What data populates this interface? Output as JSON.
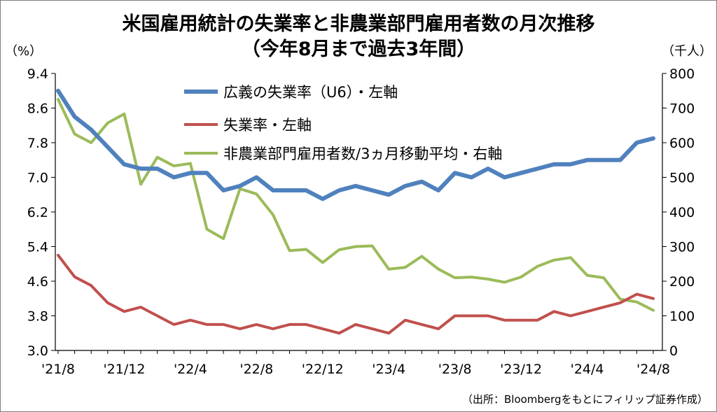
{
  "chart_data": {
    "type": "line",
    "title": "米国雇用統計の失業率と非農業部門雇用者数の月次推移",
    "subtitle": "（今年8月まで過去3年間）",
    "y_left_unit": "（%）",
    "y_right_unit": "（千人）",
    "y_left_range": [
      3.0,
      9.4
    ],
    "y_left_ticks": [
      "9.4",
      "8.6",
      "7.8",
      "7.0",
      "6.2",
      "5.4",
      "4.6",
      "3.8",
      "3.0"
    ],
    "y_right_range": [
      0,
      800
    ],
    "y_right_ticks": [
      "800",
      "700",
      "600",
      "500",
      "400",
      "300",
      "200",
      "100",
      "0"
    ],
    "x": [
      "2021-08",
      "2021-09",
      "2021-10",
      "2021-11",
      "2021-12",
      "2022-01",
      "2022-02",
      "2022-03",
      "2022-04",
      "2022-05",
      "2022-06",
      "2022-07",
      "2022-08",
      "2022-09",
      "2022-10",
      "2022-11",
      "2022-12",
      "2023-01",
      "2023-02",
      "2023-03",
      "2023-04",
      "2023-05",
      "2023-06",
      "2023-07",
      "2023-08",
      "2023-09",
      "2023-10",
      "2023-11",
      "2023-12",
      "2024-01",
      "2024-02",
      "2024-03",
      "2024-04",
      "2024-05",
      "2024-06",
      "2024-07",
      "2024-08"
    ],
    "x_tick_labels": [
      "'21/8",
      "'21/12",
      "'22/4",
      "'22/8",
      "'22/12",
      "'23/4",
      "'23/8",
      "'23/12",
      "'24/4",
      "'24/8"
    ],
    "x_tick_indices": [
      0,
      4,
      8,
      12,
      16,
      20,
      24,
      28,
      32,
      36
    ],
    "grid": false,
    "legend_position": "top-center",
    "series": [
      {
        "name": "広義の失業率（U6）・左軸",
        "axis": "left",
        "color": "#4f81bd",
        "values": [
          9.0,
          8.4,
          8.1,
          7.7,
          7.3,
          7.2,
          7.2,
          7.0,
          7.1,
          7.1,
          6.7,
          6.8,
          7.0,
          6.7,
          6.7,
          6.7,
          6.5,
          6.7,
          6.8,
          6.7,
          6.6,
          6.8,
          6.9,
          6.7,
          7.1,
          7.0,
          7.2,
          7.0,
          7.1,
          7.2,
          7.3,
          7.3,
          7.4,
          7.4,
          7.4,
          7.8,
          7.9
        ]
      },
      {
        "name": "失業率・左軸",
        "axis": "left",
        "color": "#c0504d",
        "values": [
          5.2,
          4.7,
          4.5,
          4.1,
          3.9,
          4.0,
          3.8,
          3.6,
          3.7,
          3.6,
          3.6,
          3.5,
          3.6,
          3.5,
          3.6,
          3.6,
          3.5,
          3.4,
          3.6,
          3.5,
          3.4,
          3.7,
          3.6,
          3.5,
          3.8,
          3.8,
          3.8,
          3.7,
          3.7,
          3.7,
          3.9,
          3.8,
          3.9,
          4.0,
          4.1,
          4.3,
          4.2
        ]
      },
      {
        "name": "非農業部門雇用者数/3ヵ月移動平均・右軸",
        "axis": "right",
        "color": "#9bbb59",
        "values": [
          725,
          625,
          600,
          657,
          683,
          480,
          558,
          533,
          540,
          350,
          323,
          467,
          452,
          392,
          288,
          292,
          254,
          291,
          300,
          302,
          235,
          240,
          272,
          235,
          210,
          212,
          206,
          197,
          212,
          243,
          261,
          268,
          217,
          210,
          148,
          140,
          116
        ]
      }
    ],
    "source": "（出所：Bloombergをもとにフィリップ証券作成）"
  }
}
